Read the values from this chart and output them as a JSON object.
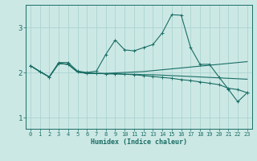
{
  "xlabel": "Humidex (Indice chaleur)",
  "bg_color": "#cce8e5",
  "grid_color": "#aad4d0",
  "line_color": "#1a6e65",
  "xlim": [
    -0.5,
    23.5
  ],
  "ylim": [
    0.75,
    3.5
  ],
  "yticks": [
    1,
    2,
    3
  ],
  "xticks": [
    0,
    1,
    2,
    3,
    4,
    5,
    6,
    7,
    8,
    9,
    10,
    11,
    12,
    13,
    14,
    15,
    16,
    17,
    18,
    19,
    20,
    21,
    22,
    23
  ],
  "line_main_x": [
    0,
    1,
    2,
    3,
    4,
    5,
    6,
    7,
    8,
    9,
    10,
    11,
    12,
    13,
    14,
    15,
    16,
    17,
    18,
    19,
    20,
    21,
    22,
    23
  ],
  "line_main_y": [
    2.15,
    2.02,
    1.9,
    2.22,
    2.22,
    2.03,
    2.0,
    2.03,
    2.4,
    2.72,
    2.5,
    2.48,
    2.55,
    2.62,
    2.88,
    3.28,
    3.27,
    2.55,
    2.18,
    2.18,
    1.9,
    1.63,
    1.35,
    1.55
  ],
  "line_flat1_x": [
    0,
    1,
    2,
    3,
    4,
    5,
    6,
    7,
    8,
    9,
    10,
    11,
    12,
    13,
    14,
    15,
    16,
    17,
    18,
    19,
    20,
    21,
    22,
    23
  ],
  "line_flat1_y": [
    2.15,
    2.02,
    1.9,
    2.2,
    2.18,
    2.01,
    1.98,
    1.98,
    1.97,
    1.97,
    1.96,
    1.96,
    1.95,
    1.95,
    1.94,
    1.93,
    1.92,
    1.91,
    1.9,
    1.89,
    1.88,
    1.87,
    1.86,
    1.85
  ],
  "line_rise_x": [
    0,
    1,
    2,
    3,
    4,
    5,
    6,
    7,
    8,
    9,
    10,
    11,
    12,
    13,
    14,
    15,
    16,
    17,
    18,
    19,
    20,
    21,
    22,
    23
  ],
  "line_rise_y": [
    2.15,
    2.02,
    1.9,
    2.2,
    2.18,
    2.01,
    1.98,
    1.98,
    1.98,
    1.99,
    2.0,
    2.01,
    2.02,
    2.04,
    2.06,
    2.08,
    2.1,
    2.12,
    2.14,
    2.16,
    2.18,
    2.2,
    2.22,
    2.24
  ],
  "line_decline_x": [
    0,
    1,
    2,
    3,
    4,
    5,
    6,
    7,
    8,
    9,
    10,
    11,
    12,
    13,
    14,
    15,
    16,
    17,
    18,
    19,
    20,
    21,
    22,
    23
  ],
  "line_decline_y": [
    2.15,
    2.02,
    1.9,
    2.2,
    2.18,
    2.01,
    1.98,
    1.98,
    1.97,
    1.97,
    1.96,
    1.95,
    1.93,
    1.91,
    1.89,
    1.87,
    1.84,
    1.82,
    1.79,
    1.76,
    1.73,
    1.65,
    1.62,
    1.55
  ]
}
